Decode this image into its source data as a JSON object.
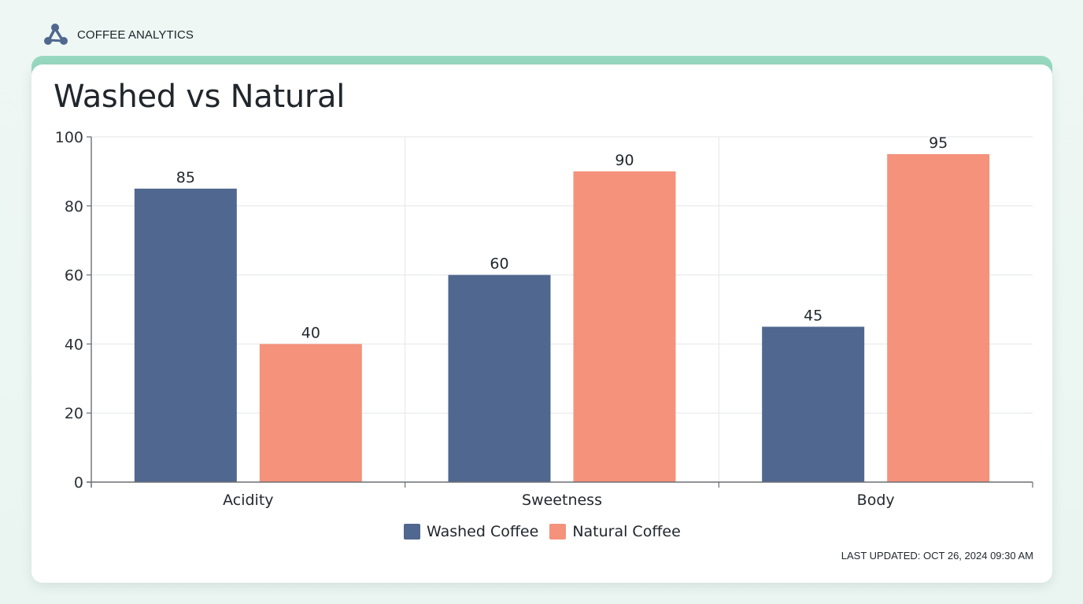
{
  "header": {
    "brand_name": "COFFEE ANALYTICS",
    "brand_icon": "network-nodes-icon"
  },
  "card": {
    "title": "Washed vs Natural",
    "last_updated": "LAST UPDATED: OCT 26, 2024 09:30 AM",
    "accent_color": "#97d9c0"
  },
  "legend": {
    "items": [
      {
        "label": "Washed Coffee",
        "color": "#50678f"
      },
      {
        "label": "Natural Coffee",
        "color": "#f5927b"
      }
    ]
  },
  "chart_data": {
    "type": "bar",
    "title": "Washed vs Natural",
    "xlabel": "",
    "ylabel": "",
    "categories": [
      "Acidity",
      "Sweetness",
      "Body"
    ],
    "series": [
      {
        "name": "Washed Coffee",
        "color": "#50678f",
        "values": [
          85,
          60,
          45
        ]
      },
      {
        "name": "Natural Coffee",
        "color": "#f5927b",
        "values": [
          40,
          90,
          95
        ]
      }
    ],
    "ylim": [
      0,
      100
    ],
    "yticks": [
      0,
      20,
      40,
      60,
      80,
      100
    ],
    "grid": true,
    "data_labels": true,
    "legend_position": "bottom"
  }
}
